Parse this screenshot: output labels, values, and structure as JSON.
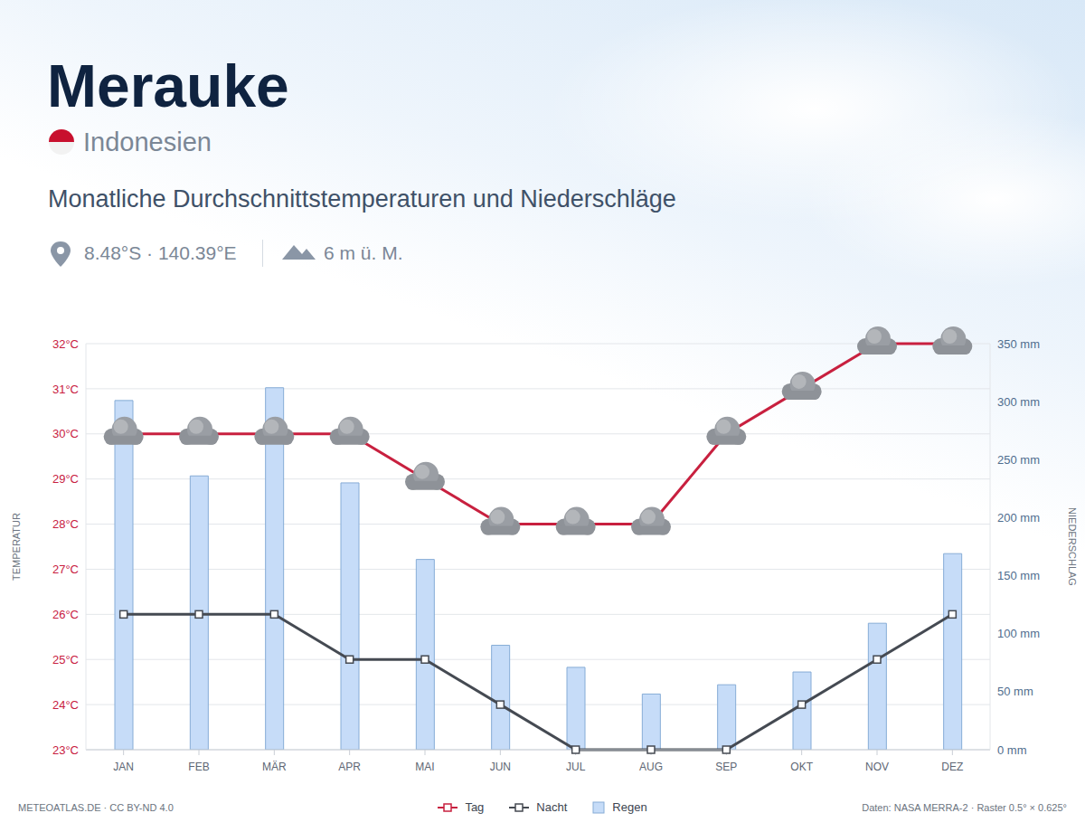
{
  "chart_data": {
    "type": "combo",
    "title": "Merauke",
    "subtitle": "Indonesien",
    "heading": "Monatliche Durchschnittstemperaturen und Niederschläge",
    "coordinates": "8.48°S · 140.39°E",
    "elevation": "6 m ü. M.",
    "credit": "METEOATLAS.DE · CC BY-ND 4.0",
    "source": "Daten: NASA MERRA-2 · Raster 0.5° × 0.625°",
    "ylabel": "TEMPERATUR",
    "y2label": "NIEDERSCHLAG",
    "categories": [
      "JAN",
      "FEB",
      "MÄR",
      "APR",
      "MAI",
      "JUN",
      "JUL",
      "AUG",
      "SEP",
      "OKT",
      "NOV",
      "DEZ"
    ],
    "series": [
      {
        "name": "Tag",
        "type": "line",
        "color": "#c8203f",
        "marker": "cloud",
        "values": [
          30,
          30,
          30,
          30,
          29,
          28,
          28,
          28,
          30,
          31,
          32,
          32
        ]
      },
      {
        "name": "Nacht",
        "type": "line",
        "color": "#454a52",
        "marker": "square",
        "values": [
          26,
          26,
          26,
          25,
          25,
          24,
          23,
          23,
          23,
          24,
          25,
          26
        ]
      },
      {
        "name": "Regen",
        "type": "bar",
        "axis": "y2",
        "color": "#c6dcf8",
        "values": [
          301,
          236,
          312,
          230,
          164,
          90,
          71,
          48,
          56,
          67,
          109,
          169
        ]
      }
    ],
    "ylim": [
      23,
      32
    ],
    "yticks": [
      {
        "value": 23,
        "label": "23°C"
      },
      {
        "value": 24,
        "label": "24°C"
      },
      {
        "value": 25,
        "label": "25°C"
      },
      {
        "value": 26,
        "label": "26°C"
      },
      {
        "value": 27,
        "label": "27°C"
      },
      {
        "value": 28,
        "label": "28°C"
      },
      {
        "value": 29,
        "label": "29°C"
      },
      {
        "value": 30,
        "label": "30°C"
      },
      {
        "value": 31,
        "label": "31°C"
      },
      {
        "value": 32,
        "label": "32°C"
      }
    ],
    "y2lim": [
      0,
      350
    ],
    "y2ticks": [
      {
        "value": 0,
        "label": "0 mm"
      },
      {
        "value": 50,
        "label": "50 mm"
      },
      {
        "value": 100,
        "label": "100 mm"
      },
      {
        "value": 150,
        "label": "150 mm"
      },
      {
        "value": 200,
        "label": "200 mm"
      },
      {
        "value": 250,
        "label": "250 mm"
      },
      {
        "value": 300,
        "label": "300 mm"
      },
      {
        "value": 350,
        "label": "350 mm"
      }
    ],
    "grid": true,
    "legend": "bottom"
  }
}
